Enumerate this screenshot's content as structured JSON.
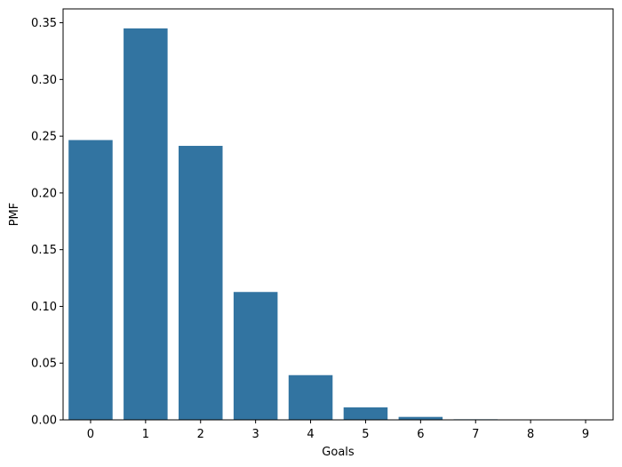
{
  "chart_data": {
    "type": "bar",
    "categories": [
      "0",
      "1",
      "2",
      "3",
      "4",
      "5",
      "6",
      "7",
      "8",
      "9"
    ],
    "values": [
      0.2466,
      0.345,
      0.2415,
      0.1127,
      0.0394,
      0.011,
      0.0026,
      0.0005,
      0.0001,
      0.0
    ],
    "xlabel": "Goals",
    "ylabel": "PMF",
    "ylim": [
      0,
      0.3622
    ],
    "yticks": [
      0.0,
      0.05,
      0.1,
      0.15,
      0.2,
      0.25,
      0.3,
      0.35
    ],
    "ytick_labels": [
      "0.00",
      "0.05",
      "0.10",
      "0.15",
      "0.20",
      "0.25",
      "0.30",
      "0.35"
    ],
    "grid": false,
    "colors": {
      "bar": "#3274a1",
      "axes": "#000000",
      "background": "#ffffff"
    }
  }
}
